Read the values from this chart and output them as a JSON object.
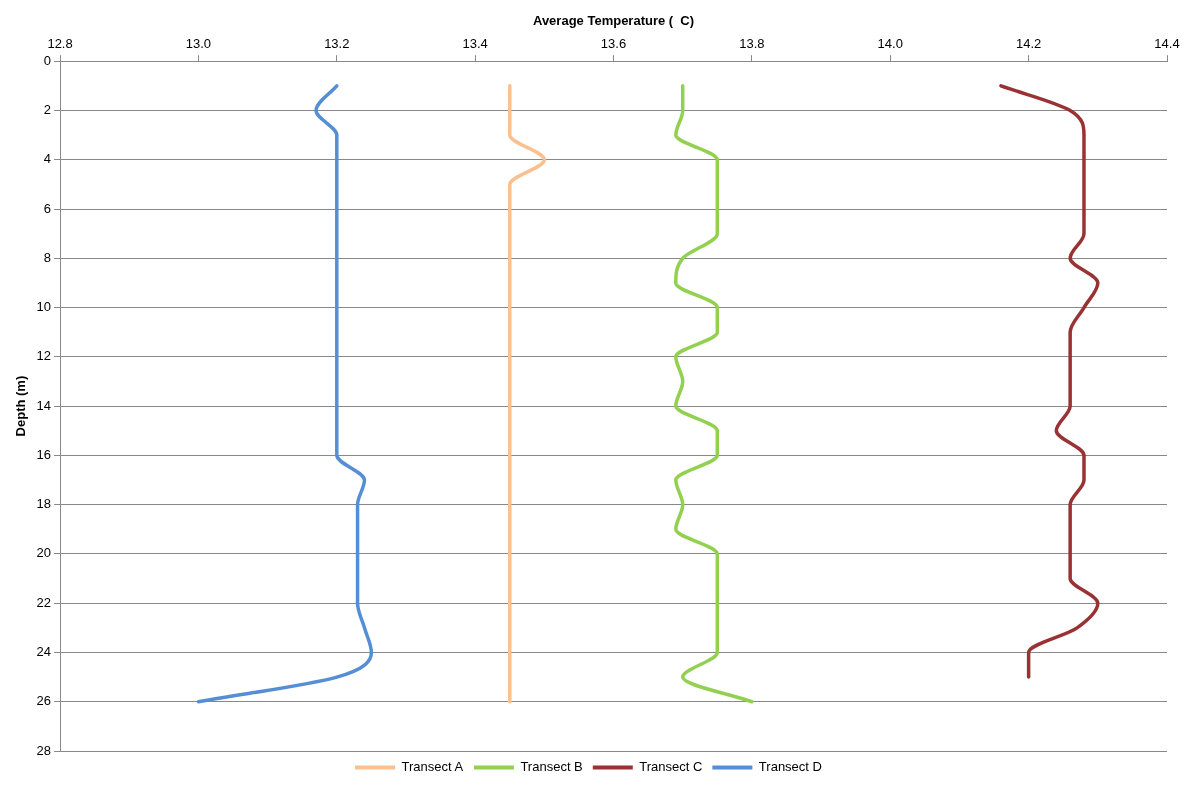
{
  "chart_data": {
    "type": "line",
    "xlabel": "Average Temperature (  C)",
    "ylabel": "Depth (m)",
    "xlim": [
      12.8,
      14.4
    ],
    "xticks": [
      {
        "value": 12.8,
        "label": "12.8"
      },
      {
        "value": 13.0,
        "label": "13.0"
      },
      {
        "value": 13.2,
        "label": "13.2"
      },
      {
        "value": 13.4,
        "label": "13.4"
      },
      {
        "value": 13.6,
        "label": "13.6"
      },
      {
        "value": 13.8,
        "label": "13.8"
      },
      {
        "value": 14.0,
        "label": "14.0"
      },
      {
        "value": 14.2,
        "label": "14.2"
      },
      {
        "value": 14.4,
        "label": "14.4"
      }
    ],
    "ylim": [
      28,
      0
    ],
    "yticks": [
      0,
      2,
      4,
      6,
      8,
      10,
      12,
      14,
      16,
      18,
      20,
      22,
      24,
      26,
      28
    ],
    "grid": "y",
    "legend": "bottom",
    "marker": "none",
    "line_style": "solid",
    "series": [
      {
        "name": "Transect A",
        "color": "#fac090",
        "x": [
          13.45,
          13.45,
          13.45,
          13.5,
          13.45,
          13.45,
          13.45,
          13.45,
          13.45,
          13.45,
          13.45,
          13.45,
          13.45,
          13.45,
          13.45,
          13.45,
          13.45,
          13.45,
          13.45,
          13.45,
          13.45,
          13.45,
          13.45,
          13.45,
          13.45,
          13.45
        ],
        "values": [
          1,
          2,
          3,
          4,
          5,
          6,
          7,
          8,
          9,
          10,
          11,
          12,
          13,
          14,
          15,
          16,
          17,
          18,
          19,
          20,
          21,
          22,
          23,
          24,
          25,
          26
        ]
      },
      {
        "name": "Transect B",
        "color": "#92d050",
        "x": [
          13.7,
          13.7,
          13.69,
          13.75,
          13.75,
          13.75,
          13.75,
          13.7,
          13.69,
          13.75,
          13.75,
          13.69,
          13.7,
          13.69,
          13.75,
          13.75,
          13.69,
          13.7,
          13.69,
          13.75,
          13.75,
          13.75,
          13.75,
          13.75,
          13.7,
          13.8
        ],
        "values": [
          1,
          2,
          3,
          4,
          5,
          6,
          7,
          8,
          9,
          10,
          11,
          12,
          13,
          14,
          15,
          16,
          17,
          18,
          19,
          20,
          21,
          22,
          23,
          24,
          25,
          26
        ]
      },
      {
        "name": "Transect C",
        "color": "#993333",
        "x": [
          14.16,
          14.26,
          14.28,
          14.28,
          14.28,
          14.28,
          14.28,
          14.26,
          14.3,
          14.28,
          14.26,
          14.26,
          14.26,
          14.26,
          14.24,
          14.28,
          14.28,
          14.26,
          14.26,
          14.26,
          14.26,
          14.3,
          14.27,
          14.2,
          14.2
        ],
        "values": [
          1,
          2,
          3,
          4,
          5,
          6,
          7,
          8,
          9,
          10,
          11,
          12,
          13,
          14,
          15,
          16,
          17,
          18,
          19,
          20,
          21,
          22,
          23,
          24,
          25
        ]
      },
      {
        "name": "Transect D",
        "color": "#558ed5",
        "x": [
          13.2,
          13.17,
          13.2,
          13.2,
          13.2,
          13.2,
          13.2,
          13.2,
          13.2,
          13.2,
          13.2,
          13.2,
          13.2,
          13.2,
          13.2,
          13.2,
          13.24,
          13.23,
          13.23,
          13.23,
          13.23,
          13.23,
          13.24,
          13.25,
          13.2,
          13.0
        ],
        "values": [
          1,
          2,
          3,
          4,
          5,
          6,
          7,
          8,
          9,
          10,
          11,
          12,
          13,
          14,
          15,
          16,
          17,
          18,
          19,
          20,
          21,
          22,
          23,
          24,
          25,
          26
        ]
      }
    ]
  }
}
